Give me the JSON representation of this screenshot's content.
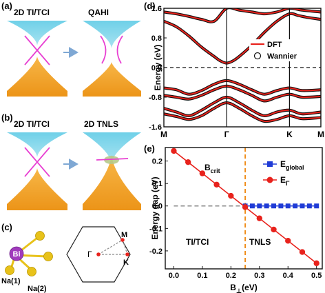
{
  "panels": {
    "a": {
      "label": "(a)",
      "left_title": "2D TI/TCI",
      "right_title": "QAHI"
    },
    "b": {
      "label": "(b)",
      "left_title": "2D TI/TCI",
      "right_title": "2D TNLS"
    },
    "c": {
      "label": "(c)",
      "atom_center": "Bi",
      "atom_1": "Na(1)",
      "atom_2": "Na(2)",
      "bz_gamma": "Γ",
      "bz_m": "M",
      "bz_k": "K"
    },
    "d": {
      "label": "(d)"
    },
    "e": {
      "label": "(e)",
      "annotation_bcrit": "B",
      "annotation_bcrit_sub": "crit",
      "region_left": "TI/TCI",
      "region_right": "TNLS"
    }
  },
  "colors": {
    "conduction": "#7fd6ea",
    "valence": "#f2a126",
    "crossing": "#e83fd2",
    "dft": "#e8221c",
    "wannier": "#111111",
    "global": "#1f3bd6",
    "gamma": "#e8221c",
    "bi": "#a13bbd",
    "na": "#e8c21a",
    "arrow": "#7fa8d4"
  },
  "chart_data": [
    {
      "type": "line",
      "panel": "d",
      "ylabel": "Energy (eV)",
      "ylim": [
        -1.6,
        1.6
      ],
      "yticks": [
        "1.6",
        "0.8",
        "0.0",
        "-0.8",
        "-1.6"
      ],
      "ytick_values": [
        1.6,
        0.8,
        0.0,
        -0.8,
        -1.6
      ],
      "kpath_labels": [
        "M",
        "Γ",
        "K",
        "M"
      ],
      "kpath_positions": [
        0,
        1,
        2,
        2.5
      ],
      "legend": [
        "DFT",
        "Wannier"
      ],
      "legend_position": "right",
      "zero_line": "dashed",
      "bands": [
        {
          "x": [
            0,
            0.2,
            0.4,
            0.6,
            0.8,
            0.9,
            1.0,
            1.1,
            1.2,
            1.4,
            1.6,
            1.8,
            2.0,
            2.15,
            2.3,
            2.5
          ],
          "y": [
            1.25,
            1.1,
            0.85,
            0.55,
            0.3,
            0.18,
            0.12,
            0.18,
            0.3,
            0.6,
            0.95,
            1.25,
            1.45,
            1.4,
            1.35,
            1.3
          ]
        },
        {
          "x": [
            0,
            0.2,
            0.4,
            0.6,
            0.8,
            1.0,
            1.2,
            1.4,
            1.6,
            1.8,
            2.0,
            2.2,
            2.5
          ],
          "y": [
            1.5,
            1.45,
            1.38,
            1.3,
            1.25,
            1.6,
            1.55,
            1.5,
            1.45,
            1.5,
            1.6,
            1.55,
            1.5
          ]
        },
        {
          "x": [
            0,
            0.2,
            0.4,
            0.6,
            0.8,
            1.0,
            1.2,
            1.4,
            1.6,
            1.8,
            2.0,
            2.2,
            2.5
          ],
          "y": [
            -0.55,
            -0.6,
            -0.72,
            -0.62,
            -0.45,
            -0.35,
            -0.45,
            -0.6,
            -0.72,
            -0.62,
            -0.55,
            -0.62,
            -0.6
          ]
        },
        {
          "x": [
            0,
            0.2,
            0.4,
            0.6,
            0.8,
            1.0,
            1.2,
            1.4,
            1.6,
            1.8,
            2.0,
            2.2,
            2.5
          ],
          "y": [
            -0.75,
            -0.8,
            -0.85,
            -0.75,
            -0.6,
            -0.5,
            -0.6,
            -0.75,
            -0.9,
            -0.8,
            -0.72,
            -0.8,
            -0.78
          ]
        },
        {
          "x": [
            0,
            0.2,
            0.4,
            0.6,
            0.8,
            1.0,
            1.2,
            1.4,
            1.6,
            1.8,
            2.0,
            2.2,
            2.5
          ],
          "y": [
            -1.1,
            -1.2,
            -1.3,
            -1.15,
            -0.95,
            -0.8,
            -0.95,
            -1.15,
            -1.3,
            -1.2,
            -1.15,
            -1.25,
            -1.2
          ]
        },
        {
          "x": [
            0,
            0.2,
            0.4,
            0.6,
            0.8,
            1.0,
            1.2,
            1.4,
            1.6,
            1.8,
            2.0,
            2.2,
            2.5
          ],
          "y": [
            -1.25,
            -1.32,
            -1.4,
            -1.3,
            -1.1,
            -0.95,
            -1.1,
            -1.3,
            -1.45,
            -1.4,
            -1.3,
            -1.38,
            -1.35
          ]
        }
      ]
    },
    {
      "type": "line",
      "panel": "e",
      "xlabel": "B",
      "xlabel_sub": "⊥",
      "xlabel_unit": "(eV)",
      "ylabel": "Energy gap (eV)",
      "xlim": [
        -0.03,
        0.52
      ],
      "ylim": [
        -0.28,
        0.26
      ],
      "xticks": [
        "0.0",
        "0.1",
        "0.2",
        "0.3",
        "0.4",
        "0.5"
      ],
      "xtick_values": [
        0.0,
        0.1,
        0.2,
        0.3,
        0.4,
        0.5
      ],
      "yticks": [
        "0.2",
        "0.1",
        "0.0",
        "-0.1",
        "-0.2"
      ],
      "ytick_values": [
        0.2,
        0.1,
        0.0,
        -0.1,
        -0.2
      ],
      "bcrit": 0.25,
      "legend_position": "top-right",
      "series": [
        {
          "name": "E",
          "name_sub": "global",
          "color": "#1f3bd6",
          "marker": "square",
          "x": [
            0.25,
            0.275,
            0.3,
            0.325,
            0.35,
            0.375,
            0.4,
            0.425,
            0.45,
            0.475,
            0.5
          ],
          "y": [
            0,
            0,
            0,
            0,
            0,
            0,
            0,
            0,
            0,
            0,
            0
          ]
        },
        {
          "name": "E",
          "name_sub": "Γ",
          "color": "#e8221c",
          "marker": "circle",
          "x": [
            0.0,
            0.05,
            0.1,
            0.15,
            0.2,
            0.25,
            0.3,
            0.35,
            0.4,
            0.45,
            0.5
          ],
          "y": [
            0.245,
            0.195,
            0.145,
            0.095,
            0.045,
            -0.005,
            -0.055,
            -0.105,
            -0.155,
            -0.205,
            -0.255
          ]
        }
      ],
      "gray_dashed": {
        "x": [
          0.0,
          0.25
        ],
        "y": [
          0,
          0
        ]
      }
    }
  ]
}
